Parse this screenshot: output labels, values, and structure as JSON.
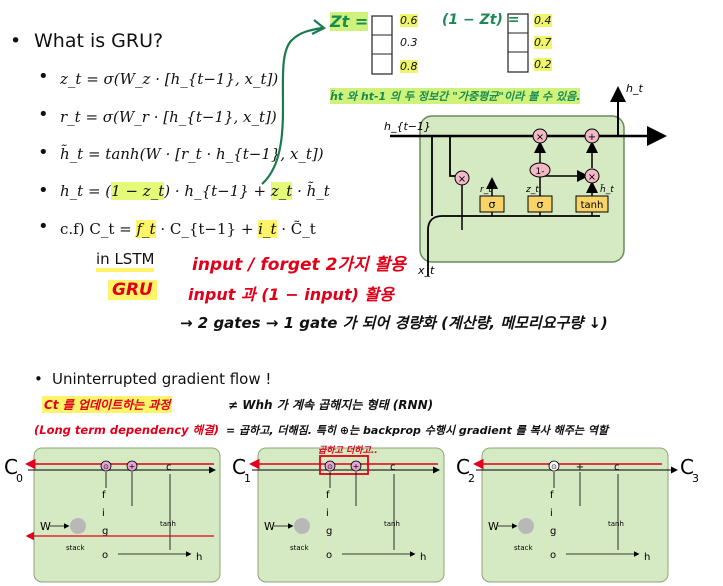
{
  "section1": {
    "title": "What is GRU?",
    "eq_z": "z_t = σ(W_z · [h_{t−1}, x_t])",
    "eq_r": "r_t = σ(W_r · [h_{t−1}, x_t])",
    "eq_h_tilde": "h̃_t = tanh(W · [r_t · h_{t−1}, x_t])",
    "eq_h_prefix": "h_t = (",
    "eq_h_onez": "1 − z_t",
    "eq_h_mid": ") · h_{t−1} + ",
    "eq_h_z": "z_t",
    "eq_h_suffix": " · h̃_t",
    "cf_prefix": "c.f) C_t = ",
    "cf_f": "f_t",
    "cf_mid": " · C_{t−1} + ",
    "cf_i": "i_t",
    "cf_suffix": " · C̃_t",
    "lstm_label": "in LSTM",
    "lstm_note": "input / forget  2가지 활용",
    "gru_label": "GRU",
    "gru_note": "input 과 (1 − input) 활용",
    "summary": "→ 2 gates → 1 gate 가 되어  경량화 (계산량, 메모리요구량 ↓)"
  },
  "zt_annotation": {
    "zt_label": "Zt =",
    "zt_values": [
      "0.6",
      "0.3",
      "0.8"
    ],
    "one_minus_label": "(1 − Zt) =",
    "one_minus_values": [
      "0.4",
      "0.7",
      "0.2"
    ],
    "note": "h̃t 와 ht-1 의 두 정보간 \"가중평균\"이라 볼 수 있음."
  },
  "gru_cell": {
    "label_h_prev": "h_{t−1}",
    "label_h_out": "h_t",
    "label_x": "x_t",
    "label_r": "r_t",
    "label_z": "z_t",
    "label_h_tilde": "h̃_t",
    "ops": [
      "×",
      "+",
      "×",
      "1-",
      "×"
    ],
    "gates": [
      "σ",
      "σ",
      "tanh"
    ]
  },
  "section2": {
    "title": "Uninterrupted gradient flow !",
    "line1_hl": "Ct 를 업데이트하는 과정",
    "line1_rest": "≠ Whh 가 계속 곱해지는 형태 (RNN)",
    "line2_hl": "(Long term dependency 해결)",
    "line2_rest": "= 곱하고, 더해짐. 특히 ⊕는 backprop 수행시 gradient 를 복사 해주는 역할",
    "callout": "곱하고 더하고.."
  },
  "lstm_chain": {
    "c_labels": [
      "C",
      "C",
      "C",
      "C"
    ],
    "c_subs": [
      "0",
      "1",
      "2",
      "3"
    ],
    "inner_labels": [
      "c",
      "f",
      "i",
      "g",
      "o",
      "W",
      "stack",
      "tanh",
      "h",
      "t"
    ]
  }
}
